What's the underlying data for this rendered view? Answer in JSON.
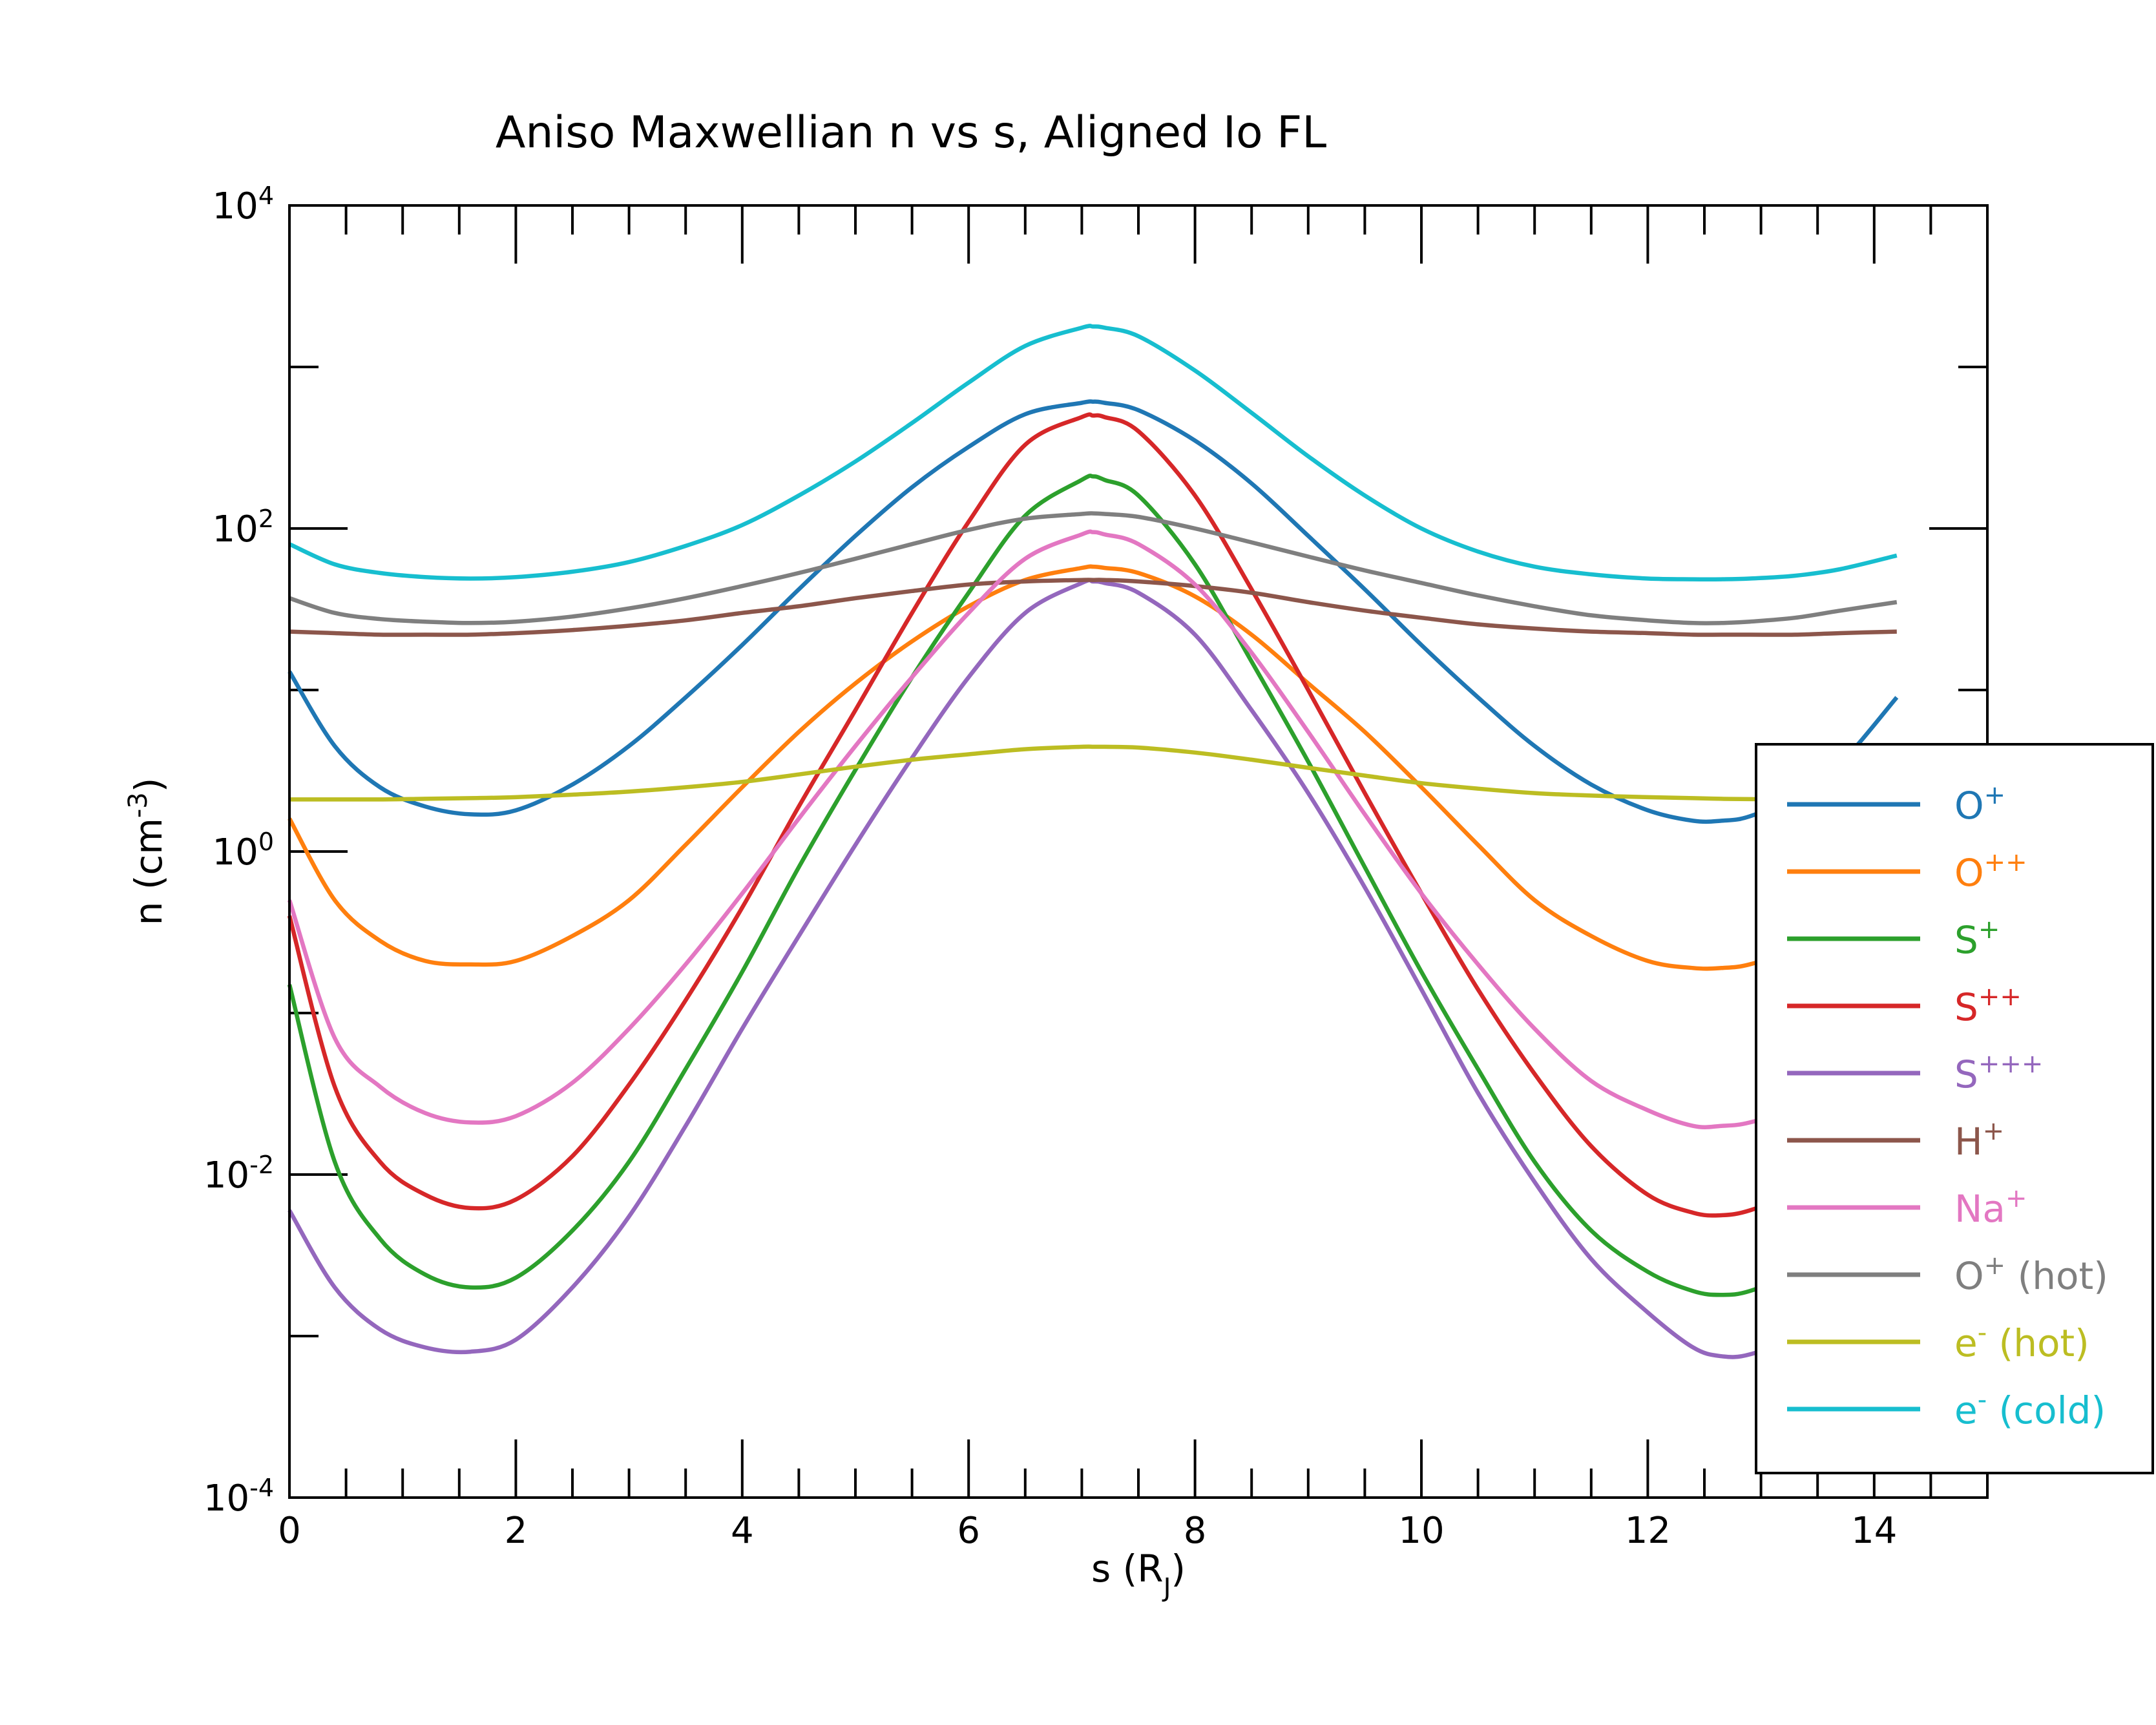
{
  "chart_data": {
    "type": "line",
    "title": "Aniso Maxwellian n vs s, Aligned Io FL",
    "xlabel": {
      "base": "s (R",
      "sub": "J",
      "tail": ")"
    },
    "ylabel": {
      "base": "n (cm",
      "sup": "-3",
      "tail": ")"
    },
    "xlim": [
      0,
      15
    ],
    "ylim": [
      0.0001,
      10000
    ],
    "yscale": "log",
    "grid": false,
    "legend_position": "right",
    "x_ticks": [
      {
        "value": 0,
        "label": "0"
      },
      {
        "value": 2,
        "label": "2"
      },
      {
        "value": 4,
        "label": "4"
      },
      {
        "value": 6,
        "label": "6"
      },
      {
        "value": 8,
        "label": "8"
      },
      {
        "value": 10,
        "label": "10"
      },
      {
        "value": 12,
        "label": "12"
      },
      {
        "value": 14,
        "label": "14"
      }
    ],
    "y_ticks": [
      {
        "value": 0.0001,
        "base": "10",
        "exp": "-4"
      },
      {
        "value": 0.01,
        "base": "10",
        "exp": "-2"
      },
      {
        "value": 1,
        "base": "10",
        "exp": "0"
      },
      {
        "value": 100,
        "base": "10",
        "exp": "2"
      },
      {
        "value": 10000,
        "base": "10",
        "exp": "4"
      }
    ],
    "x": [
      0,
      0.4,
      0.8,
      1.2,
      1.6,
      2.0,
      2.5,
      3.0,
      3.5,
      4.0,
      4.5,
      5.0,
      5.5,
      6.0,
      6.5,
      7.0,
      7.1,
      7.2,
      7.5,
      8.0,
      8.5,
      9.0,
      9.5,
      10.0,
      10.5,
      11.0,
      11.5,
      12.0,
      12.4,
      12.65,
      12.9,
      13.3,
      13.7,
      14.2
    ],
    "series": [
      {
        "name": {
          "base": "O",
          "sup": "+",
          "tail": ""
        },
        "color": "#1f77b4",
        "values": [
          13,
          4.5,
          2.5,
          1.9,
          1.7,
          1.8,
          2.6,
          4.5,
          9,
          19,
          42,
          90,
          180,
          320,
          510,
          600,
          610,
          600,
          540,
          350,
          190,
          90,
          42,
          19,
          9,
          4.5,
          2.6,
          1.8,
          1.55,
          1.55,
          1.65,
          2.2,
          3.5,
          9
        ]
      },
      {
        "name": {
          "base": "O",
          "sup": "++",
          "tail": ""
        },
        "color": "#ff7f0e",
        "values": [
          1.6,
          0.5,
          0.28,
          0.21,
          0.2,
          0.21,
          0.3,
          0.5,
          1.1,
          2.5,
          5.5,
          11,
          20,
          33,
          48,
          57,
          58,
          57,
          53,
          38,
          22,
          11,
          5.5,
          2.5,
          1.1,
          0.5,
          0.3,
          0.21,
          0.19,
          0.19,
          0.2,
          0.25,
          0.35,
          0.6
        ]
      },
      {
        "name": {
          "base": "S",
          "sup": "+",
          "tail": ""
        },
        "color": "#2ca02c",
        "values": [
          0.15,
          0.012,
          0.004,
          0.0024,
          0.002,
          0.0023,
          0.0045,
          0.012,
          0.045,
          0.18,
          0.8,
          3.2,
          12,
          40,
          120,
          200,
          210,
          200,
          160,
          60,
          15,
          3.6,
          0.8,
          0.18,
          0.045,
          0.012,
          0.0045,
          0.0025,
          0.0019,
          0.0018,
          0.0019,
          0.0025,
          0.0045,
          0.012
        ]
      },
      {
        "name": {
          "base": "S",
          "sup": "++",
          "tail": ""
        },
        "color": "#d62728",
        "values": [
          0.4,
          0.035,
          0.012,
          0.0075,
          0.0062,
          0.007,
          0.013,
          0.036,
          0.12,
          0.45,
          1.9,
          7.5,
          30,
          110,
          330,
          490,
          500,
          490,
          400,
          160,
          42,
          10,
          2.3,
          0.55,
          0.14,
          0.042,
          0.015,
          0.0075,
          0.0058,
          0.0056,
          0.006,
          0.0078,
          0.013,
          0.035
        ]
      },
      {
        "name": {
          "base": "S",
          "sup": "+++",
          "tail": ""
        },
        "color": "#9467bd",
        "values": [
          0.006,
          0.002,
          0.0011,
          0.00085,
          0.0008,
          0.00095,
          0.002,
          0.0055,
          0.02,
          0.08,
          0.3,
          1.1,
          3.8,
          12,
          30,
          46,
          47,
          46,
          40,
          22,
          7.5,
          2.3,
          0.6,
          0.14,
          0.032,
          0.009,
          0.003,
          0.0014,
          0.00085,
          0.00075,
          0.00077,
          0.001,
          0.0018,
          0.005
        ]
      },
      {
        "name": {
          "base": "H",
          "sup": "+",
          "tail": ""
        },
        "color": "#8c564b",
        "values": [
          23,
          22.5,
          22,
          22,
          22,
          22.5,
          23.5,
          25,
          27,
          30,
          33,
          37,
          41,
          45,
          47,
          48,
          48,
          48,
          47,
          44,
          40,
          35,
          31,
          28,
          25.5,
          24,
          23,
          22.5,
          22,
          22,
          22,
          22,
          22.5,
          23
        ]
      },
      {
        "name": {
          "base": "Na",
          "sup": "+",
          "tail": ""
        },
        "color": "#e377c2",
        "values": [
          0.5,
          0.07,
          0.035,
          0.024,
          0.021,
          0.023,
          0.037,
          0.08,
          0.2,
          0.55,
          1.6,
          4.5,
          12,
          30,
          65,
          92,
          95,
          92,
          80,
          45,
          17,
          5.5,
          1.7,
          0.55,
          0.2,
          0.08,
          0.038,
          0.025,
          0.02,
          0.02,
          0.021,
          0.026,
          0.04,
          0.12
        ]
      },
      {
        "name": {
          "base": "O",
          "sup": "+",
          "tail": " (hot)"
        },
        "color": "#7f7f7f",
        "values": [
          37,
          30,
          27.5,
          26.5,
          26,
          26.5,
          28.5,
          32,
          37,
          44,
          53,
          65,
          80,
          98,
          115,
          123,
          124,
          123,
          118,
          100,
          82,
          67,
          55,
          46,
          38.5,
          33,
          29,
          27,
          26,
          26,
          26.5,
          28,
          31,
          35
        ]
      },
      {
        "name": {
          "base": "e",
          "sup": "-",
          "tail": " (hot)"
        },
        "color": "#bcbd22",
        "values": [
          2.1,
          2.1,
          2.1,
          2.12,
          2.14,
          2.17,
          2.25,
          2.35,
          2.5,
          2.7,
          3.0,
          3.35,
          3.7,
          4.0,
          4.3,
          4.45,
          4.45,
          4.45,
          4.4,
          4.1,
          3.7,
          3.3,
          2.95,
          2.65,
          2.45,
          2.3,
          2.22,
          2.17,
          2.14,
          2.12,
          2.11,
          2.1,
          2.1,
          2.1
        ]
      },
      {
        "name": {
          "base": "e",
          "sup": "-",
          "tail": " (cold)"
        },
        "color": "#17becf",
        "values": [
          80,
          60,
          53,
          50,
          49,
          50,
          54,
          62,
          78,
          105,
          160,
          260,
          450,
          800,
          1350,
          1750,
          1780,
          1750,
          1550,
          950,
          520,
          280,
          160,
          100,
          72,
          58,
          52,
          49,
          48.5,
          48.5,
          49,
          51,
          56,
          68
        ]
      }
    ]
  }
}
